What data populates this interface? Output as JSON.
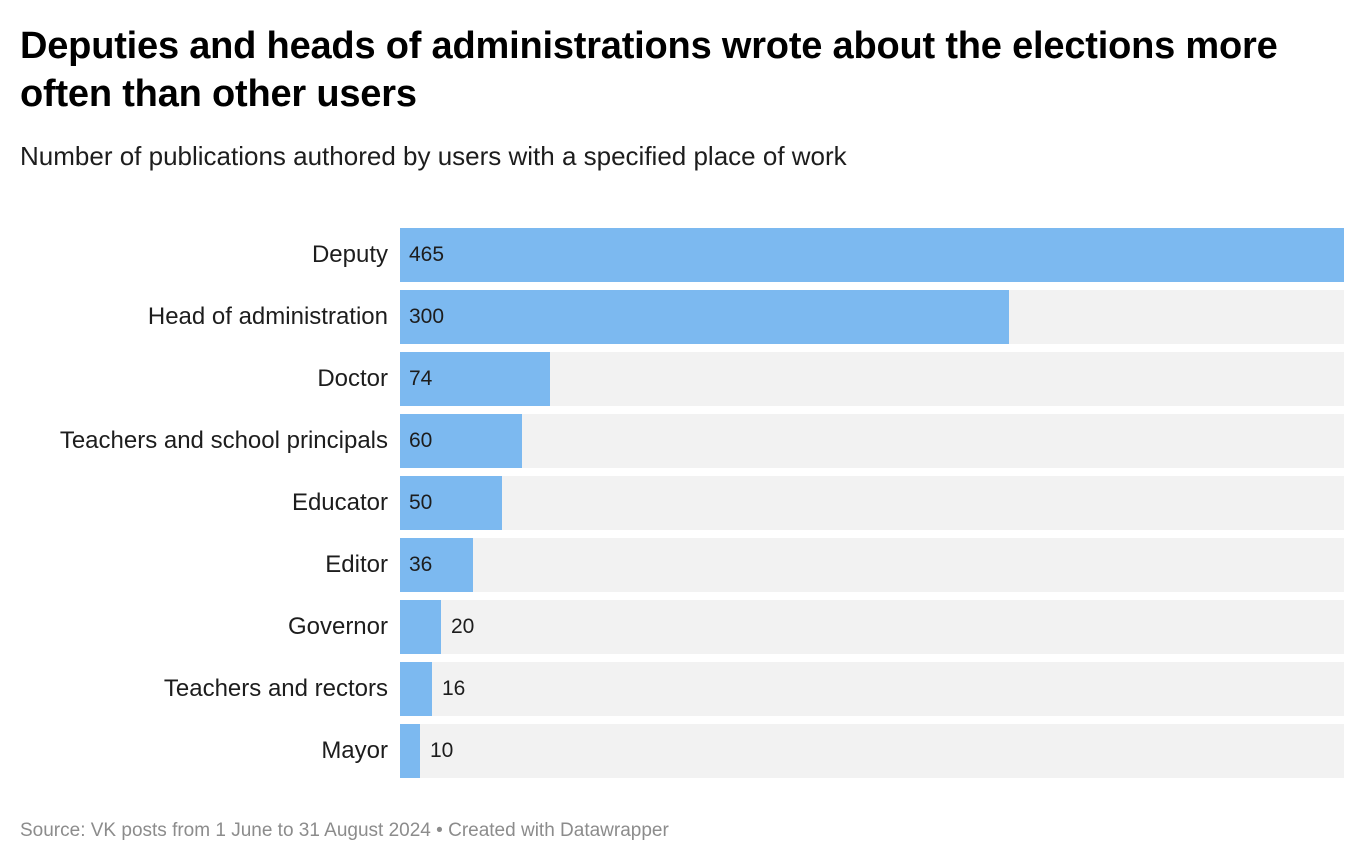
{
  "title": "Deputies and heads of administrations wrote about the elections more often than other users",
  "subtitle": "Number of publications authored by users with a specified place of work",
  "footer": {
    "source": "Source: VK posts from 1 June to 31 August 2024",
    "separator": "•",
    "credit": "Created with Datawrapper"
  },
  "colors": {
    "bar": "#7cb9f0",
    "track": "#f2f2f2",
    "text": "#1d1d1d",
    "footer": "#8c8c8c"
  },
  "chart_data": {
    "type": "bar",
    "orientation": "horizontal",
    "title": "Deputies and heads of administrations wrote about the elections more often than other users",
    "subtitle": "Number of publications authored by users with a specified place of work",
    "xlabel": "",
    "ylabel": "",
    "categories": [
      "Deputy",
      "Head of administration",
      "Doctor",
      "Teachers and school principals",
      "Educator",
      "Editor",
      "Governor",
      "Teachers and rectors",
      "Mayor"
    ],
    "values": [
      465,
      300,
      74,
      60,
      50,
      36,
      20,
      16,
      10
    ],
    "xlim": [
      0,
      465
    ],
    "grid": false,
    "legend": "none",
    "data_labels": true
  }
}
